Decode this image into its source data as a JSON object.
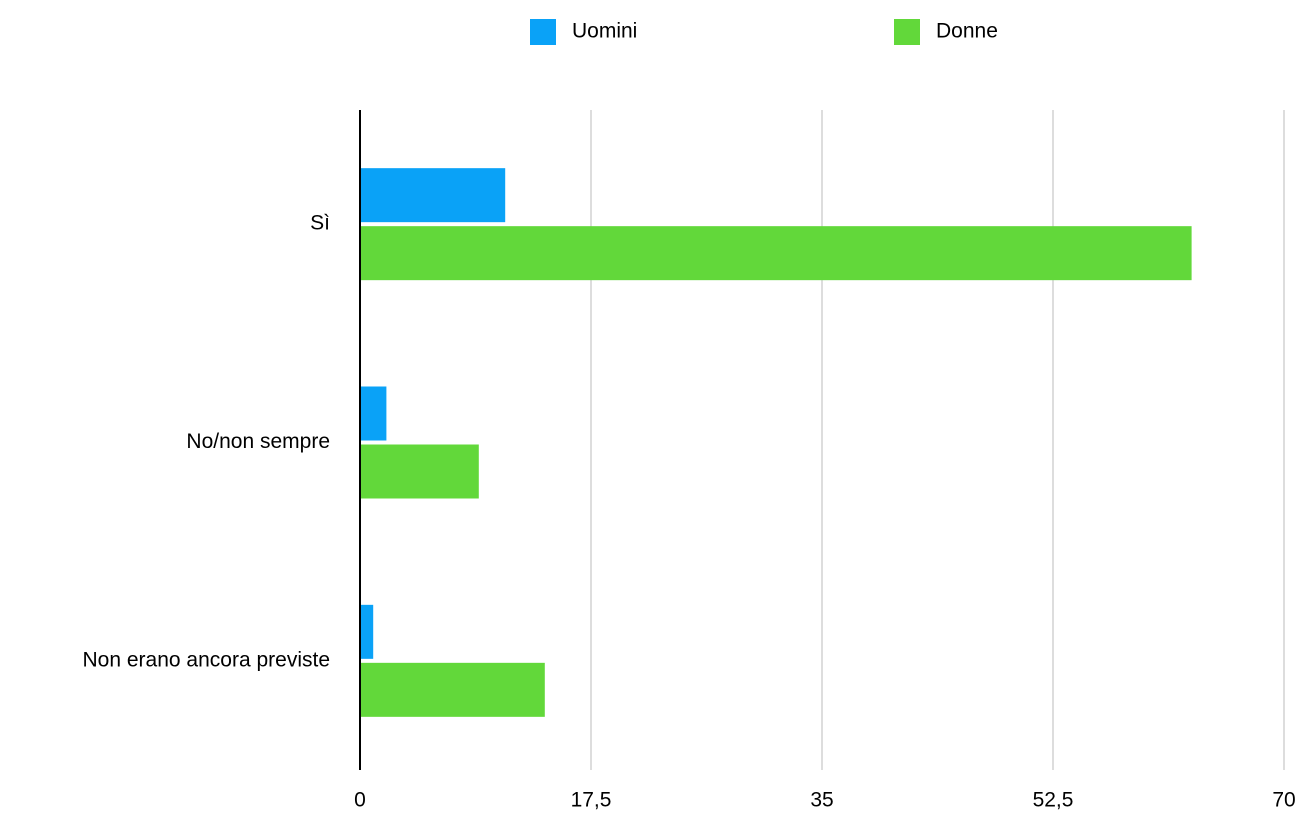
{
  "chart_data": {
    "type": "hbar",
    "categories": [
      "Sì",
      "No/non sempre",
      "Non erano ancora previste"
    ],
    "series": [
      {
        "name": "Uomini",
        "color": "#0aa2f7",
        "values": [
          11,
          2,
          1
        ]
      },
      {
        "name": "Donne",
        "color": "#62d83a",
        "values": [
          63,
          9,
          14
        ]
      }
    ],
    "xlim": [
      0,
      70
    ],
    "xticks": [
      0,
      {
        "value": 17.5,
        "label": "17,5"
      },
      35,
      {
        "value": 52.5,
        "label": "52,5"
      },
      70
    ],
    "grid": true,
    "legend": "top"
  }
}
